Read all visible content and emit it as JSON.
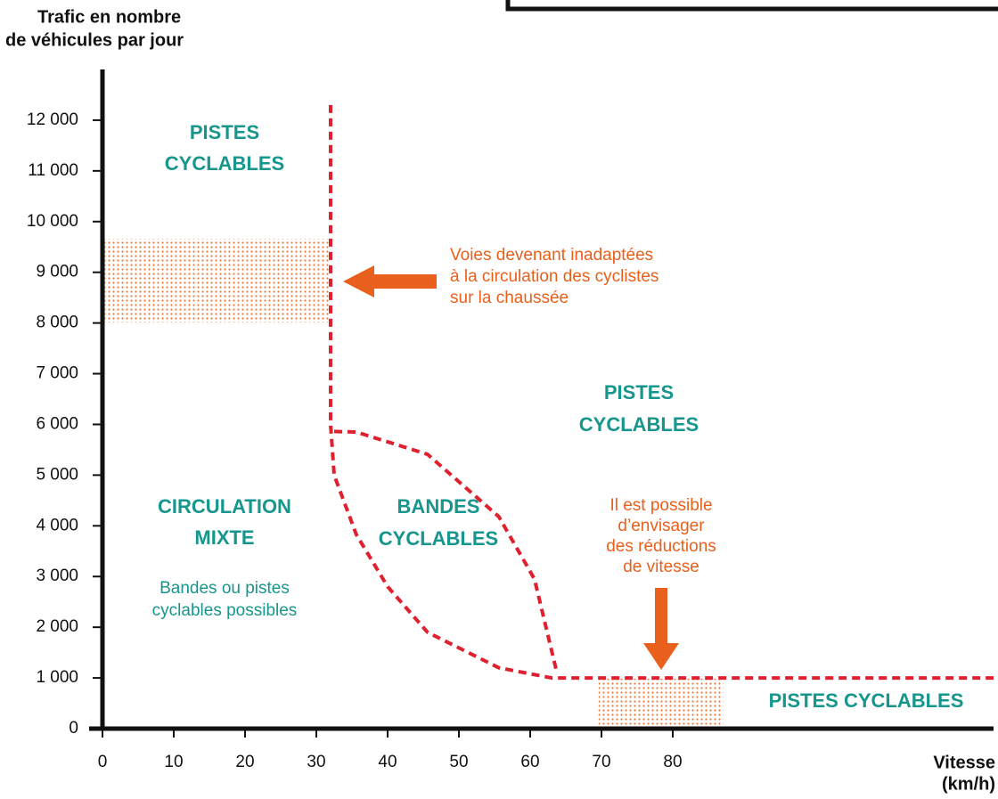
{
  "chart_data": {
    "type": "zones",
    "ylabel": [
      "Trafic en nombre",
      "de véhicules par jour"
    ],
    "xlabel": [
      "Vitesse",
      "(km/h)"
    ],
    "xlim": [
      0,
      125
    ],
    "ylim": [
      0,
      13000
    ],
    "xticks": [
      0,
      10,
      20,
      30,
      40,
      50,
      60,
      70,
      80
    ],
    "yticks": [
      0,
      {
        "value": 1000,
        "label": "1 000"
      },
      {
        "value": 2000,
        "label": "2 000"
      },
      {
        "value": 3000,
        "label": "3 000"
      },
      {
        "value": 4000,
        "label": "4 000"
      },
      {
        "value": 5000,
        "label": "5 000"
      },
      {
        "value": 6000,
        "label": "6 000"
      },
      {
        "value": 7000,
        "label": "7 000"
      },
      {
        "value": 8000,
        "label": "8 000"
      },
      {
        "value": 9000,
        "label": "9 000"
      },
      {
        "value": 10000,
        "label": "10 000"
      },
      {
        "value": 11000,
        "label": "11 000"
      },
      {
        "value": 12000,
        "label": "12 000"
      }
    ],
    "boundary_color": "#e0202e",
    "boundaries": [
      {
        "x": [
          32,
          32,
          32.5,
          35.6,
          40,
          45.6,
          55.6,
          63,
          125
        ],
        "y": [
          12300,
          6000,
          5000,
          3830,
          2800,
          1900,
          1200,
          1000,
          1000
        ]
      },
      {
        "x": [
          32.5,
          35.6,
          45.6,
          55.6,
          60.6,
          63.75
        ],
        "y": [
          5860,
          5850,
          5410,
          4180,
          2950,
          1100
        ]
      }
    ],
    "zone_color": "#f07a3a",
    "zones": [
      {
        "x": [
          0,
          32
        ],
        "y": [
          8010,
          9660
        ]
      },
      {
        "x": [
          69.6,
          87.1
        ],
        "y": [
          0,
          985
        ]
      }
    ],
    "label_color": "#16968c",
    "labels": [
      [
        "PISTES",
        "CYCLABLES"
      ],
      [
        "PISTES",
        "CYCLABLES"
      ],
      [
        "CIRCULATION",
        "MIXTE"
      ],
      [
        "Bandes ou pistes",
        "cyclables possibles"
      ],
      [
        "BANDES",
        "CYCLABLES"
      ],
      [
        "PISTES CYCLABLES"
      ]
    ],
    "annotation_color": "#e8601c",
    "annotations": [
      [
        "Voies devenant inadaptées",
        "à la circulation des cyclistes",
        "sur la chaussée"
      ],
      [
        "Il est possible",
        "d’envisager",
        "des réductions",
        "de vitesse"
      ]
    ]
  }
}
